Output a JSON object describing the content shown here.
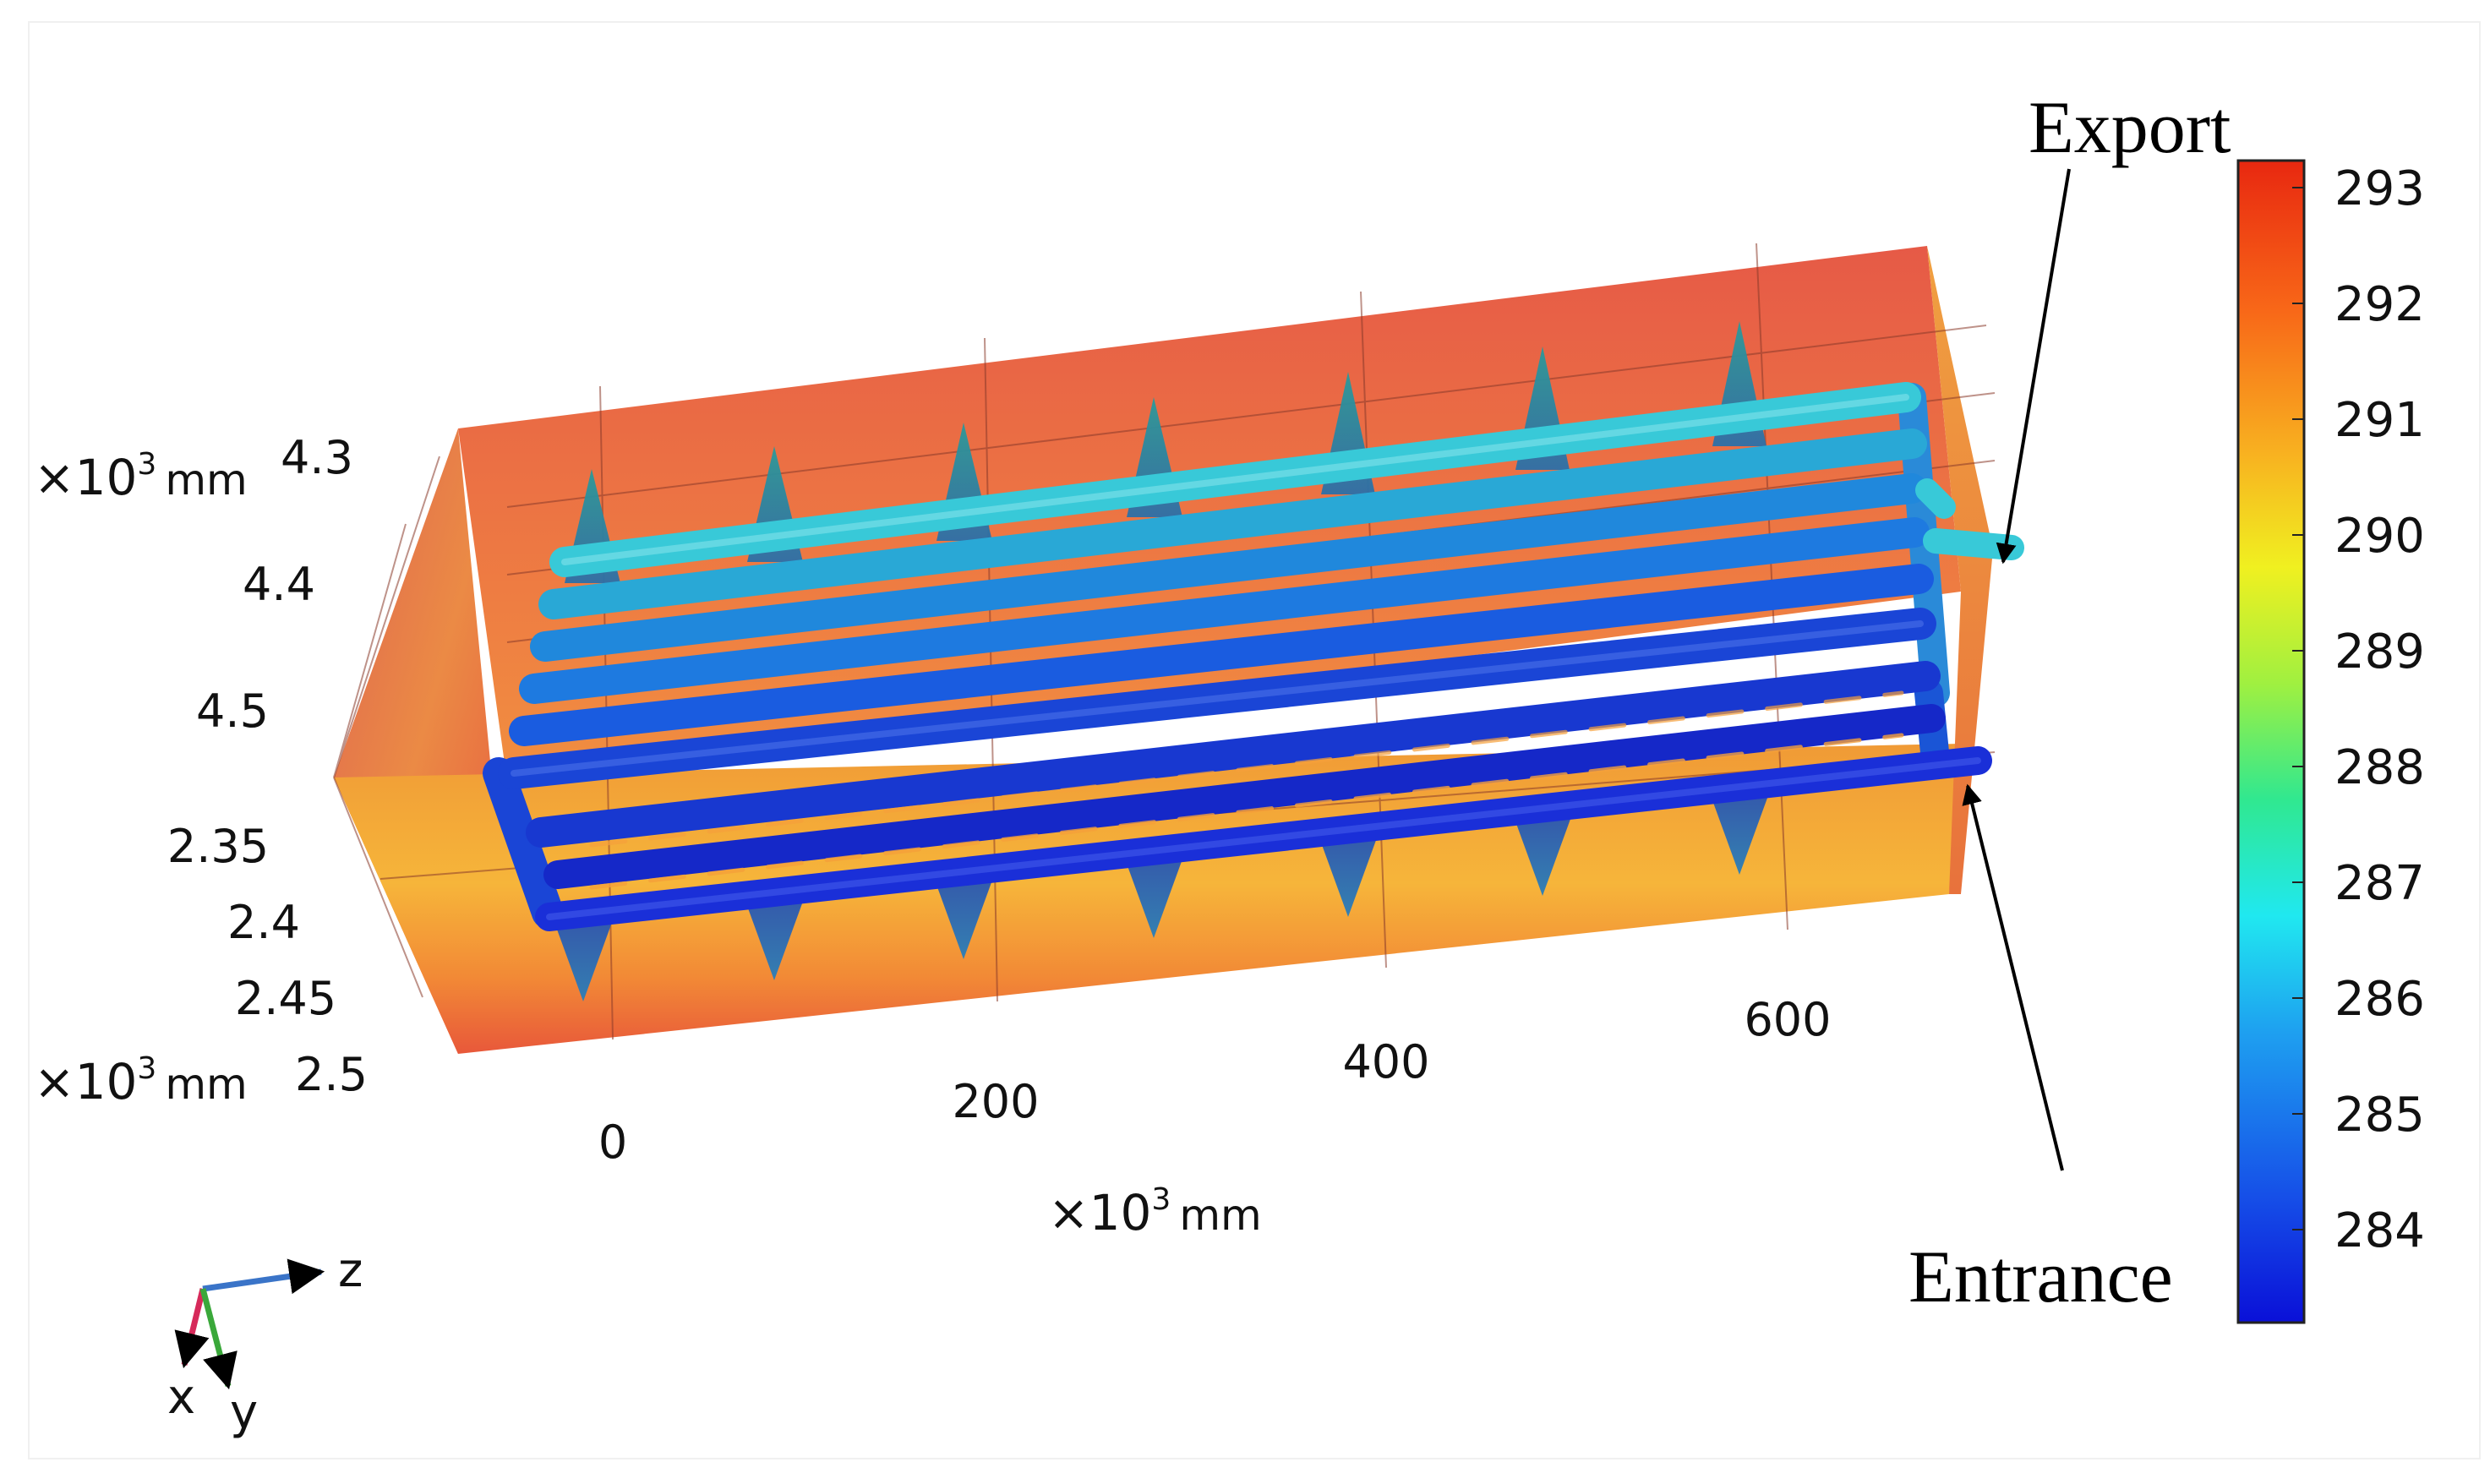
{
  "callouts": {
    "export": "Export",
    "entrance": "Entrance"
  },
  "axes": {
    "unit_mult": "×10",
    "unit_exp": "3",
    "unit_mm": "mm",
    "depth_ticks": [
      "4.3",
      "4.4",
      "4.5"
    ],
    "vertical_ticks": [
      "2.35",
      "2.4",
      "2.45",
      "2.5"
    ],
    "length_ticks": [
      "0",
      "200",
      "400",
      "600"
    ]
  },
  "colorbar": {
    "ticks": [
      "293",
      "292",
      "291",
      "290",
      "289",
      "288",
      "287",
      "286",
      "285",
      "284"
    ],
    "colors": [
      "#0a10d8",
      "#1650e8",
      "#1ea0f0",
      "#20e8f0",
      "#30e890",
      "#a0f040",
      "#f0f020",
      "#f8b020",
      "#f86818",
      "#e82810"
    ]
  },
  "triad": {
    "z": "z",
    "x": "x",
    "y": "y"
  }
}
